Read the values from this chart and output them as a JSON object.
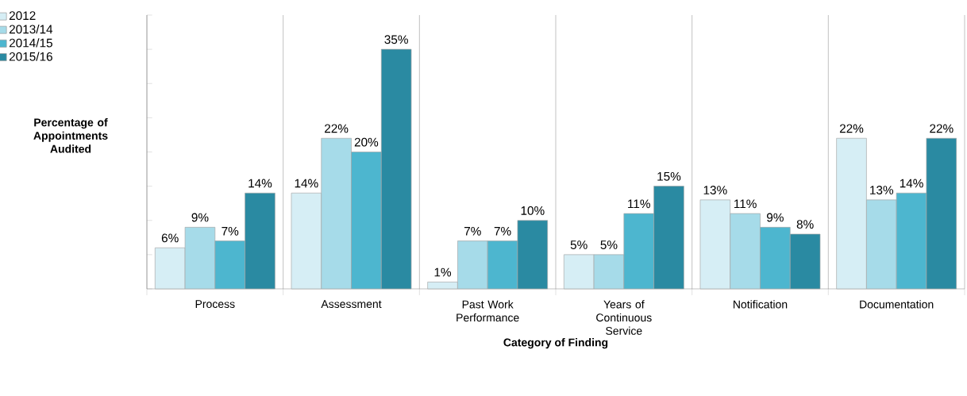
{
  "chart_data": {
    "type": "bar",
    "xlabel": "Category of Finding",
    "ylabel": "Percentage of Appointments Audited",
    "categories": [
      "Process",
      "Assessment",
      "Past Work Performance",
      "Years of Continuous Service",
      "Notification",
      "Documentation"
    ],
    "series": [
      {
        "name": "2012",
        "color": "#d6eef5",
        "values": [
          6,
          14,
          1,
          5,
          13,
          22
        ],
        "value_labels": [
          "6%",
          "14%",
          "1%",
          "5%",
          "13%",
          "22%"
        ]
      },
      {
        "name": "2013/14",
        "color": "#a6dbe9",
        "values": [
          9,
          22,
          7,
          5,
          11,
          13
        ],
        "value_labels": [
          "9%",
          "22%",
          "7%",
          "5%",
          "11%",
          "13%"
        ]
      },
      {
        "name": "2014/15",
        "color": "#4db6cf",
        "values": [
          7,
          20,
          7,
          11,
          9,
          14
        ],
        "value_labels": [
          "7%",
          "20%",
          "7%",
          "11%",
          "9%",
          "14%"
        ]
      },
      {
        "name": "2015/16",
        "color": "#2a8aa2",
        "values": [
          14,
          35,
          10,
          15,
          8,
          22
        ],
        "value_labels": [
          "14%",
          "35%",
          "10%",
          "15%",
          "8%",
          "22%"
        ]
      }
    ],
    "ylim": [
      0,
      40
    ],
    "yticks": [
      {
        "value": 0,
        "label": null
      },
      {
        "value": 5,
        "label": null
      },
      {
        "value": 10,
        "label": null
      },
      {
        "value": 15,
        "label": null
      },
      {
        "value": 20,
        "label": null
      },
      {
        "value": 25,
        "label": null
      },
      {
        "value": 30,
        "label": null
      },
      {
        "value": 35,
        "label": null
      },
      {
        "value": 40,
        "label": null
      }
    ],
    "tick_labels": "x",
    "grid": "x",
    "legend": "top left"
  }
}
